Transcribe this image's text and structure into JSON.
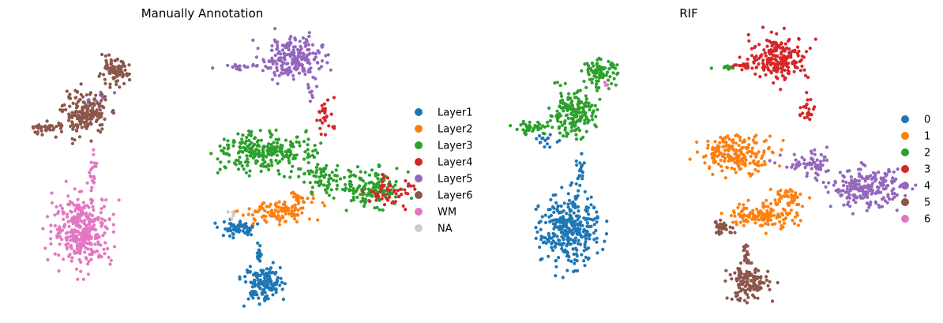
{
  "chart_data": [
    {
      "type": "scatter",
      "title": "Manually Annotation",
      "xlabel": "",
      "ylabel": "",
      "grid": false,
      "legend_placement": "right",
      "legend": [
        {
          "label": "Layer1",
          "color": "#1f77b4"
        },
        {
          "label": "Layer2",
          "color": "#ff7f0e"
        },
        {
          "label": "Layer3",
          "color": "#2ca02c"
        },
        {
          "label": "Layer4",
          "color": "#d62728"
        },
        {
          "label": "Layer5",
          "color": "#9467bd"
        },
        {
          "label": "Layer6",
          "color": "#8c564b"
        },
        {
          "label": "WM",
          "color": "#e377c2"
        },
        {
          "label": "NA",
          "color": "#cccccc"
        }
      ],
      "series": [
        {
          "name": "Layer1",
          "color": "#1f77b4",
          "clusters": [
            {
              "cx": 5.8,
              "cy": 1.3,
              "rx": 0.65,
              "ry": 0.75,
              "n": 140
            },
            {
              "cx": 4.9,
              "cy": 4.0,
              "rx": 0.55,
              "ry": 0.35,
              "n": 60
            },
            {
              "cx": 5.7,
              "cy": 2.6,
              "rx": 0.08,
              "ry": 0.6,
              "n": 18
            }
          ]
        },
        {
          "name": "Layer2",
          "color": "#ff7f0e",
          "clusters": [
            {
              "cx": 6.3,
              "cy": 4.7,
              "rx": 1.0,
              "ry": 0.45,
              "n": 95
            },
            {
              "cx": 7.2,
              "cy": 5.4,
              "rx": 0.6,
              "ry": 0.35,
              "n": 30
            }
          ]
        },
        {
          "name": "Layer3",
          "color": "#2ca02c",
          "clusters": [
            {
              "cx": 5.9,
              "cy": 7.7,
              "rx": 1.6,
              "ry": 0.75,
              "n": 260
            },
            {
              "cx": 9.6,
              "cy": 5.9,
              "rx": 1.1,
              "ry": 0.75,
              "n": 150
            },
            {
              "cx": 7.9,
              "cy": 6.4,
              "rx": 0.9,
              "ry": 0.6,
              "n": 60
            }
          ]
        },
        {
          "name": "Layer4",
          "color": "#d62728",
          "clusters": [
            {
              "cx": 10.5,
              "cy": 5.8,
              "rx": 0.7,
              "ry": 0.7,
              "n": 55
            },
            {
              "cx": 8.1,
              "cy": 9.4,
              "rx": 0.35,
              "ry": 0.8,
              "n": 28
            }
          ]
        },
        {
          "name": "Layer5",
          "color": "#9467bd",
          "clusters": [
            {
              "cx": 6.9,
              "cy": 12.2,
              "rx": 0.95,
              "ry": 0.95,
              "n": 210
            },
            {
              "cx": 5.0,
              "cy": 11.8,
              "rx": 0.7,
              "ry": 0.12,
              "n": 22
            },
            {
              "cx": 7.5,
              "cy": 10.6,
              "rx": 0.2,
              "ry": 0.35,
              "n": 10
            },
            {
              "cx": -0.1,
              "cy": 10.2,
              "rx": 0.4,
              "ry": 0.6,
              "n": 14
            }
          ]
        },
        {
          "name": "Layer6",
          "color": "#8c564b",
          "clusters": [
            {
              "cx": -0.5,
              "cy": 9.5,
              "rx": 0.7,
              "ry": 0.9,
              "n": 185
            },
            {
              "cx": 0.5,
              "cy": 11.5,
              "rx": 0.5,
              "ry": 0.55,
              "n": 80
            },
            {
              "cx": -1.9,
              "cy": 8.8,
              "rx": 0.6,
              "ry": 0.3,
              "n": 40
            }
          ]
        },
        {
          "name": "WM",
          "color": "#e377c2",
          "clusters": [
            {
              "cx": -0.6,
              "cy": 3.9,
              "rx": 0.95,
              "ry": 1.5,
              "n": 330
            },
            {
              "cx": -0.2,
              "cy": 6.6,
              "rx": 0.12,
              "ry": 0.8,
              "n": 20
            }
          ]
        },
        {
          "name": "NA",
          "color": "#cccccc",
          "clusters": [
            {
              "cx": 4.7,
              "cy": 4.6,
              "rx": 0.2,
              "ry": 0.15,
              "n": 6
            }
          ]
        }
      ]
    },
    {
      "type": "scatter",
      "title": "RIF",
      "xlabel": "",
      "ylabel": "",
      "grid": false,
      "legend_placement": "right",
      "legend": [
        {
          "label": "0",
          "color": "#1f77b4"
        },
        {
          "label": "1",
          "color": "#ff7f0e"
        },
        {
          "label": "2",
          "color": "#2ca02c"
        },
        {
          "label": "3",
          "color": "#d62728"
        },
        {
          "label": "4",
          "color": "#9467bd"
        },
        {
          "label": "5",
          "color": "#8c564b"
        },
        {
          "label": "6",
          "color": "#e377c2"
        }
      ],
      "series": [
        {
          "name": "0",
          "color": "#1f77b4",
          "clusters": [
            {
              "cx": -0.6,
              "cy": 3.9,
              "rx": 0.95,
              "ry": 1.5,
              "n": 330
            },
            {
              "cx": -0.2,
              "cy": 6.6,
              "rx": 0.12,
              "ry": 0.8,
              "n": 20
            },
            {
              "cx": -1.4,
              "cy": 8.2,
              "rx": 0.4,
              "ry": 0.25,
              "n": 15
            }
          ]
        },
        {
          "name": "1",
          "color": "#ff7f0e",
          "clusters": [
            {
              "cx": 5.4,
              "cy": 7.6,
              "rx": 1.2,
              "ry": 0.8,
              "n": 200
            },
            {
              "cx": 6.3,
              "cy": 4.6,
              "rx": 1.1,
              "ry": 0.55,
              "n": 130
            },
            {
              "cx": 7.2,
              "cy": 5.5,
              "rx": 0.6,
              "ry": 0.4,
              "n": 40
            }
          ]
        },
        {
          "name": "2",
          "color": "#2ca02c",
          "clusters": [
            {
              "cx": -0.5,
              "cy": 9.5,
              "rx": 0.75,
              "ry": 0.95,
              "n": 190
            },
            {
              "cx": 0.5,
              "cy": 11.5,
              "rx": 0.55,
              "ry": 0.55,
              "n": 90
            },
            {
              "cx": -1.9,
              "cy": 8.8,
              "rx": 0.6,
              "ry": 0.3,
              "n": 40
            },
            {
              "cx": 5.0,
              "cy": 11.8,
              "rx": 0.4,
              "ry": 0.1,
              "n": 10
            }
          ]
        },
        {
          "name": "3",
          "color": "#d62728",
          "clusters": [
            {
              "cx": 6.9,
              "cy": 12.2,
              "rx": 0.95,
              "ry": 0.95,
              "n": 210
            },
            {
              "cx": 5.6,
              "cy": 11.8,
              "rx": 0.4,
              "ry": 0.12,
              "n": 15
            },
            {
              "cx": 7.9,
              "cy": 9.6,
              "rx": 0.3,
              "ry": 0.8,
              "n": 25
            }
          ]
        },
        {
          "name": "4",
          "color": "#9467bd",
          "clusters": [
            {
              "cx": 10.0,
              "cy": 5.9,
              "rx": 1.1,
              "ry": 0.8,
              "n": 210
            },
            {
              "cx": 8.0,
              "cy": 7.0,
              "rx": 0.9,
              "ry": 0.55,
              "n": 60
            }
          ]
        },
        {
          "name": "5",
          "color": "#8c564b",
          "clusters": [
            {
              "cx": 5.8,
              "cy": 1.3,
              "rx": 0.65,
              "ry": 0.75,
              "n": 140
            },
            {
              "cx": 4.9,
              "cy": 4.0,
              "rx": 0.4,
              "ry": 0.3,
              "n": 35
            },
            {
              "cx": 5.7,
              "cy": 2.6,
              "rx": 0.08,
              "ry": 0.6,
              "n": 18
            }
          ]
        },
        {
          "name": "6",
          "color": "#e377c2",
          "clusters": [
            {
              "cx": 0.7,
              "cy": 11.0,
              "rx": 0.1,
              "ry": 0.1,
              "n": 3
            }
          ]
        }
      ]
    }
  ]
}
